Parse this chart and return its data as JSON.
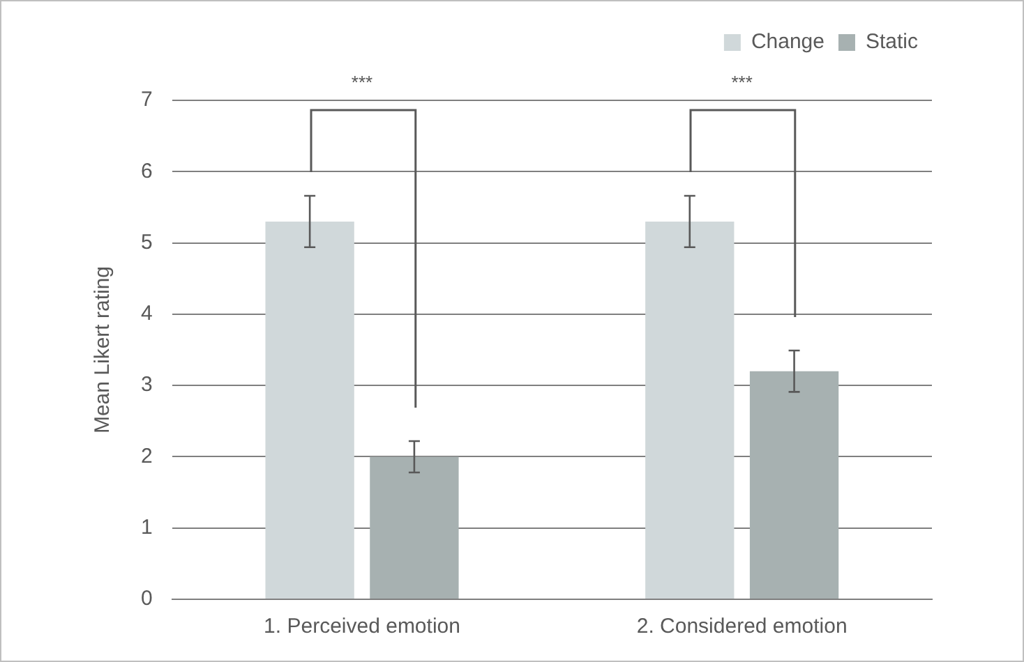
{
  "chart_data": {
    "type": "bar",
    "ylabel": "Mean Likert rating",
    "categories": [
      "1. Perceived emotion",
      "2. Considered emotion"
    ],
    "series": [
      {
        "name": "Change",
        "color": "#d0d8da",
        "values": [
          5.3,
          5.3
        ],
        "errors": [
          0.36,
          0.36
        ]
      },
      {
        "name": "Static",
        "color": "#a7b1b1",
        "values": [
          2.0,
          3.2
        ],
        "errors": [
          0.22,
          0.29
        ]
      }
    ],
    "ylim": [
      0,
      7
    ],
    "yticks": [
      0,
      1,
      2,
      3,
      4,
      5,
      6,
      7
    ],
    "grid": "y",
    "legend": "top right",
    "annotations": [
      "***",
      "***"
    ]
  }
}
